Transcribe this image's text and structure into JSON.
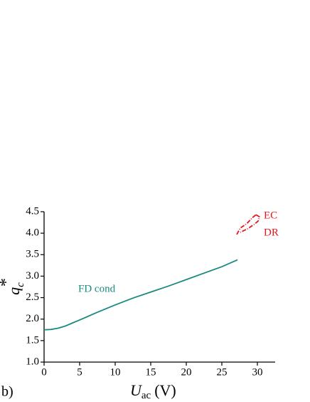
{
  "chart_data": {
    "type": "line",
    "panel_label": "b)",
    "xlabel": [
      "U",
      "ac",
      "(V)"
    ],
    "ylabel": [
      "q",
      "c",
      "*"
    ],
    "xlim": [
      0,
      32.5
    ],
    "ylim": [
      1.0,
      4.5
    ],
    "xticks": [
      0,
      5,
      10,
      15,
      20,
      25,
      30
    ],
    "yticks": [
      {
        "value": 1,
        "label": "1.0"
      },
      1.5,
      {
        "value": 2,
        "label": "2.0"
      },
      2.5,
      {
        "value": 3,
        "label": "3.0"
      },
      3.5,
      {
        "value": 4,
        "label": "4.0"
      },
      4.5
    ],
    "series": [
      {
        "name": "FD cond",
        "color": "#1a8a80",
        "dash": "none",
        "x": [
          0,
          1,
          2,
          3,
          4,
          5,
          7.5,
          10,
          12.5,
          15,
          17.5,
          20,
          22.5,
          25,
          27.2
        ],
        "values": [
          1.75,
          1.76,
          1.79,
          1.84,
          1.91,
          1.98,
          2.16,
          2.33,
          2.49,
          2.63,
          2.77,
          2.92,
          3.07,
          3.22,
          3.38
        ]
      },
      {
        "name": "EC",
        "color": "#e8141c",
        "dash": "6,2,1,2",
        "x": [
          27.1,
          27.6,
          28.5,
          29.3,
          29.8
        ],
        "values": [
          3.97,
          4.12,
          4.22,
          4.36,
          4.43
        ]
      },
      {
        "name": "DR",
        "color": "#e8141c",
        "dash": "6,2,1,2",
        "x": [
          29.8,
          30.3,
          30.1,
          29.5,
          28.6,
          27.6
        ],
        "values": [
          4.43,
          4.38,
          4.28,
          4.2,
          4.1,
          4.02
        ]
      }
    ]
  }
}
